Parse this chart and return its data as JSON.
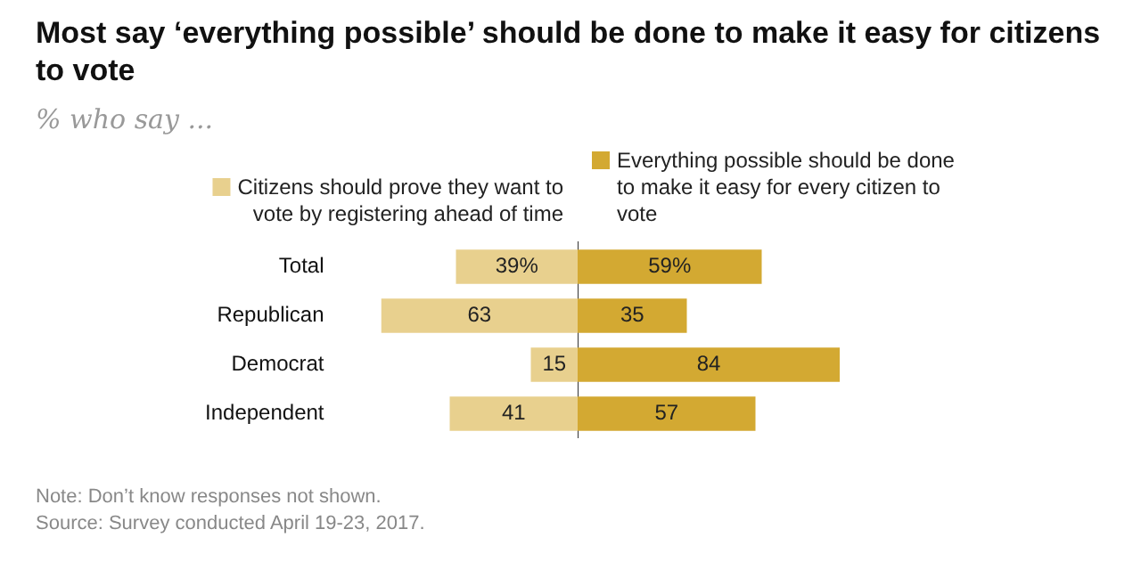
{
  "chart_data": [
    {
      "type": "bar",
      "orientation": "horizontal",
      "title": "Most say ‘everything possible’ should be done to make it easy for citizens to vote",
      "subtitle": "% who say ...",
      "categories": [
        "Total",
        "Republican",
        "Democrat",
        "Independent"
      ],
      "xlim": [
        63,
        0
      ],
      "tick_labels": "y",
      "legend": "top",
      "series": [
        {
          "name": "Citizens should prove they want to vote by registering ahead of time",
          "color": "#e8d08e",
          "values": [
            39,
            63,
            15,
            41
          ],
          "value_labels": [
            "39%",
            "63",
            "15",
            "41"
          ]
        }
      ],
      "annotations": [
        "Note: Don’t know responses not shown.",
        "Source: Survey conducted April 19-23, 2017."
      ]
    },
    {
      "type": "bar",
      "orientation": "horizontal",
      "categories": [
        null,
        null,
        null,
        null
      ],
      "xlim": [
        0,
        84
      ],
      "tick_labels": false,
      "legend": "top",
      "series": [
        {
          "name": "Everything possible should be done to make it easy for every citizen to vote",
          "color": "#d3a932",
          "values": [
            59,
            35,
            84,
            57
          ],
          "value_labels": [
            "59%",
            "35",
            "84",
            "57"
          ]
        }
      ]
    }
  ]
}
